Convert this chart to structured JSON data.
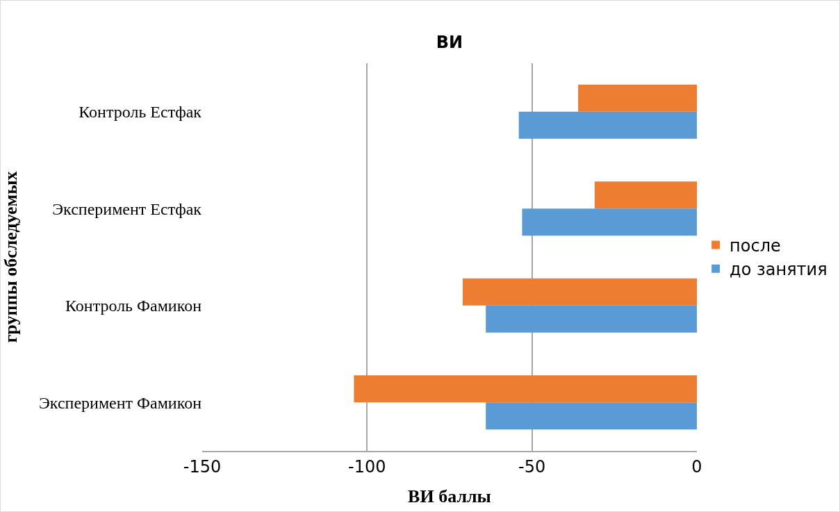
{
  "chart_data": {
    "type": "bar",
    "orientation": "horizontal",
    "title": "ВИ",
    "xlabel": "ВИ баллы",
    "ylabel": "группы обследуемых",
    "categories": [
      "Контроль Естфак",
      "Эксперимент Естфак",
      "Контроль Фамикон",
      "Эксперимент Фамикон"
    ],
    "series": [
      {
        "name": "после",
        "color": "#ed7d31",
        "values": [
          -36,
          -31,
          -71,
          -104
        ]
      },
      {
        "name": "до занятия",
        "color": "#5b9bd5",
        "values": [
          -54,
          -53,
          -64,
          -64
        ]
      }
    ],
    "xlim": [
      -150,
      0
    ],
    "xticks": [
      -150,
      -100,
      -50,
      0
    ],
    "grid": "x",
    "legend": "right"
  }
}
